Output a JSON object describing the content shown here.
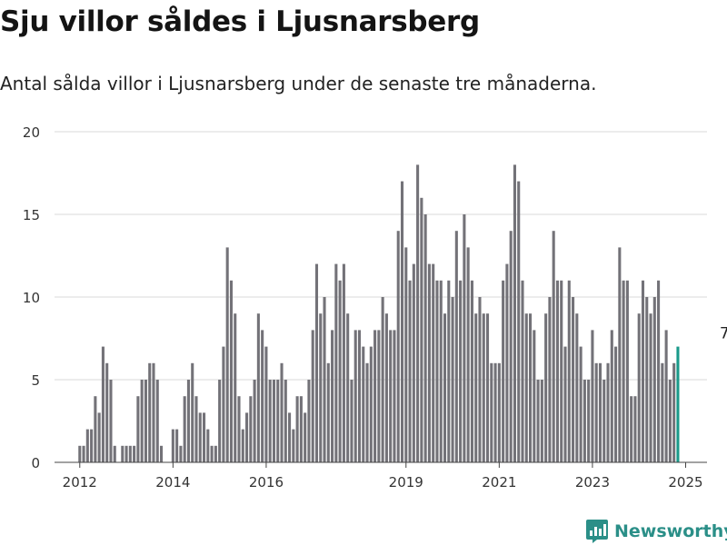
{
  "title": "Sju villor såldes i Ljusnarsberg",
  "subtitle": "Antal sålda villor i Ljusnarsberg under de senaste tre månaderna.",
  "brand": "Newsworthy",
  "colors": {
    "bar": "#737278",
    "highlight": "#1a9a8a",
    "grid": "#d9d9d9",
    "brand": "#2b8f88"
  },
  "chart_data": {
    "type": "bar",
    "title": "",
    "xlabel": "",
    "ylabel": "",
    "ylim": [
      0,
      20
    ],
    "y_ticks": [
      0,
      5,
      10,
      15,
      20
    ],
    "x_ticks": [
      "2012",
      "2014",
      "2016",
      "2019",
      "2021",
      "2023",
      "2025"
    ],
    "x_range": [
      "2011-07",
      "2025-06"
    ],
    "grid": true,
    "legend": "none",
    "series": [
      {
        "start": "2012-01",
        "frequency": "monthly",
        "values": [
          1,
          1,
          2,
          2,
          4,
          3,
          7,
          6,
          5,
          1,
          0,
          1,
          1,
          1,
          1,
          4,
          5,
          5,
          6,
          6,
          5,
          1,
          0,
          0,
          2,
          2,
          1,
          4,
          5,
          6,
          4,
          3,
          3,
          2,
          1,
          1,
          5,
          7,
          13,
          11,
          9,
          4,
          2,
          3,
          4,
          5,
          9,
          8,
          7,
          5,
          5,
          5,
          6,
          5,
          3,
          2,
          4,
          4,
          3,
          5,
          8,
          12,
          9,
          10,
          6,
          8,
          12,
          11,
          12,
          9,
          5,
          8,
          8,
          7,
          6,
          7,
          8,
          8,
          10,
          9,
          8,
          8,
          14,
          17,
          13,
          11,
          12,
          18,
          16,
          15,
          12,
          12,
          11,
          11,
          9,
          11,
          10,
          14,
          11,
          15,
          13,
          11,
          9,
          10,
          9,
          9,
          6,
          6,
          6,
          11,
          12,
          14,
          18,
          17,
          11,
          9,
          9,
          8,
          5,
          5,
          9,
          10,
          14,
          11,
          11,
          7,
          11,
          10,
          9,
          7,
          5,
          5,
          8,
          6,
          6,
          5,
          6,
          8,
          7,
          13,
          11,
          11,
          4,
          4,
          9,
          11,
          10,
          9,
          10,
          11,
          6,
          8,
          5,
          6,
          7
        ]
      }
    ],
    "annotations": [
      {
        "date": "2025-11",
        "value": 7,
        "label": "7"
      }
    ]
  }
}
